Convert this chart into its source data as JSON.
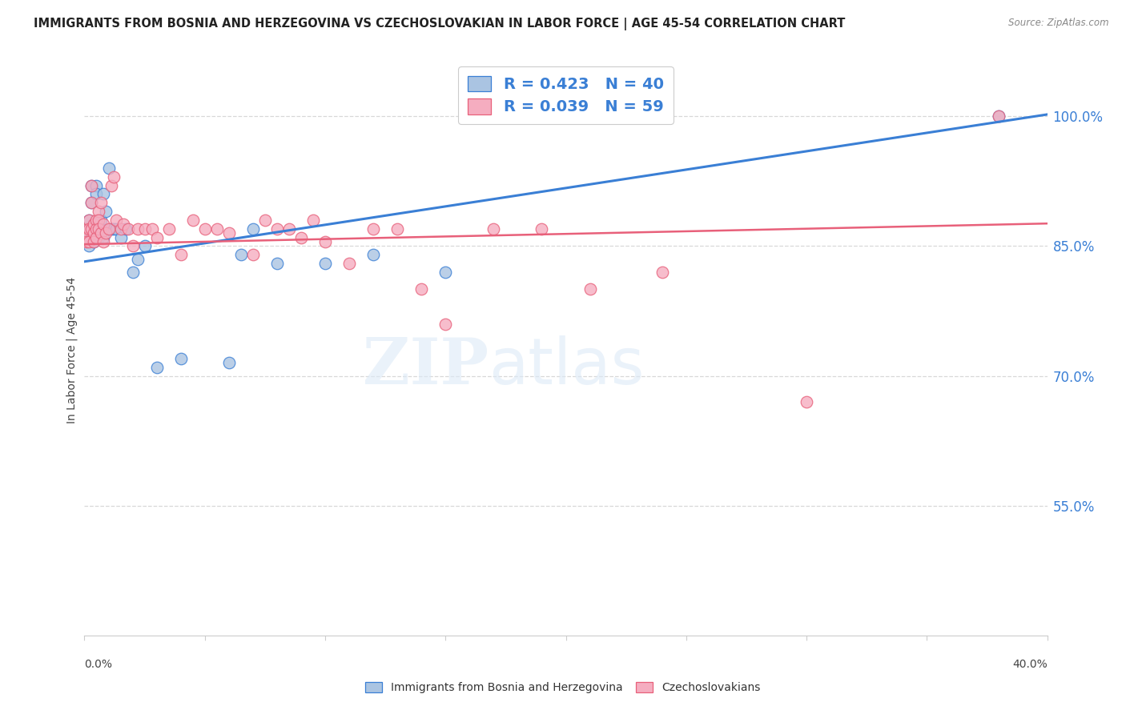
{
  "title": "IMMIGRANTS FROM BOSNIA AND HERZEGOVINA VS CZECHOSLOVAKIAN IN LABOR FORCE | AGE 45-54 CORRELATION CHART",
  "source": "Source: ZipAtlas.com",
  "ylabel": "In Labor Force | Age 45-54",
  "bosnia_R": 0.423,
  "bosnia_N": 40,
  "czech_R": 0.039,
  "czech_N": 59,
  "bosnia_color": "#aac4e2",
  "czech_color": "#f5adc0",
  "bosnia_line_color": "#3a7fd5",
  "czech_line_color": "#e8607a",
  "bg_color": "#ffffff",
  "grid_color": "#d8d8d8",
  "xlim": [
    0.0,
    0.4
  ],
  "ylim": [
    0.4,
    1.06
  ],
  "yticks": [
    0.55,
    0.7,
    0.85,
    1.0
  ],
  "ytick_labels": [
    "55.0%",
    "70.0%",
    "85.0%",
    "100.0%"
  ],
  "bosnia_line_x": [
    0.0,
    0.4
  ],
  "bosnia_line_y": [
    0.832,
    1.002
  ],
  "czech_line_x": [
    0.0,
    0.4
  ],
  "czech_line_y": [
    0.852,
    0.876
  ],
  "bosnia_x": [
    0.001,
    0.001,
    0.002,
    0.002,
    0.002,
    0.003,
    0.003,
    0.003,
    0.004,
    0.004,
    0.004,
    0.005,
    0.005,
    0.005,
    0.006,
    0.006,
    0.007,
    0.007,
    0.008,
    0.008,
    0.009,
    0.01,
    0.011,
    0.012,
    0.013,
    0.015,
    0.017,
    0.02,
    0.022,
    0.025,
    0.03,
    0.04,
    0.06,
    0.065,
    0.07,
    0.08,
    0.1,
    0.12,
    0.15,
    0.38
  ],
  "bosnia_y": [
    0.87,
    0.86,
    0.88,
    0.87,
    0.85,
    0.92,
    0.9,
    0.86,
    0.875,
    0.865,
    0.855,
    0.92,
    0.91,
    0.87,
    0.86,
    0.87,
    0.88,
    0.87,
    0.91,
    0.86,
    0.89,
    0.94,
    0.87,
    0.87,
    0.87,
    0.86,
    0.87,
    0.82,
    0.835,
    0.85,
    0.71,
    0.72,
    0.715,
    0.84,
    0.87,
    0.83,
    0.83,
    0.84,
    0.82,
    1.0
  ],
  "czech_x": [
    0.001,
    0.001,
    0.001,
    0.002,
    0.002,
    0.002,
    0.003,
    0.003,
    0.003,
    0.004,
    0.004,
    0.004,
    0.005,
    0.005,
    0.005,
    0.006,
    0.006,
    0.006,
    0.007,
    0.007,
    0.008,
    0.008,
    0.009,
    0.01,
    0.011,
    0.012,
    0.013,
    0.015,
    0.016,
    0.018,
    0.02,
    0.022,
    0.025,
    0.028,
    0.03,
    0.035,
    0.04,
    0.045,
    0.05,
    0.055,
    0.06,
    0.07,
    0.075,
    0.08,
    0.085,
    0.09,
    0.095,
    0.1,
    0.11,
    0.12,
    0.13,
    0.14,
    0.15,
    0.17,
    0.19,
    0.21,
    0.24,
    0.3,
    0.38
  ],
  "czech_y": [
    0.87,
    0.86,
    0.855,
    0.88,
    0.87,
    0.855,
    0.92,
    0.9,
    0.87,
    0.875,
    0.865,
    0.855,
    0.88,
    0.87,
    0.86,
    0.89,
    0.88,
    0.87,
    0.9,
    0.865,
    0.875,
    0.855,
    0.865,
    0.87,
    0.92,
    0.93,
    0.88,
    0.87,
    0.875,
    0.87,
    0.85,
    0.87,
    0.87,
    0.87,
    0.86,
    0.87,
    0.84,
    0.88,
    0.87,
    0.87,
    0.865,
    0.84,
    0.88,
    0.87,
    0.87,
    0.86,
    0.88,
    0.855,
    0.83,
    0.87,
    0.87,
    0.8,
    0.76,
    0.87,
    0.87,
    0.8,
    0.82,
    0.67,
    1.0
  ]
}
